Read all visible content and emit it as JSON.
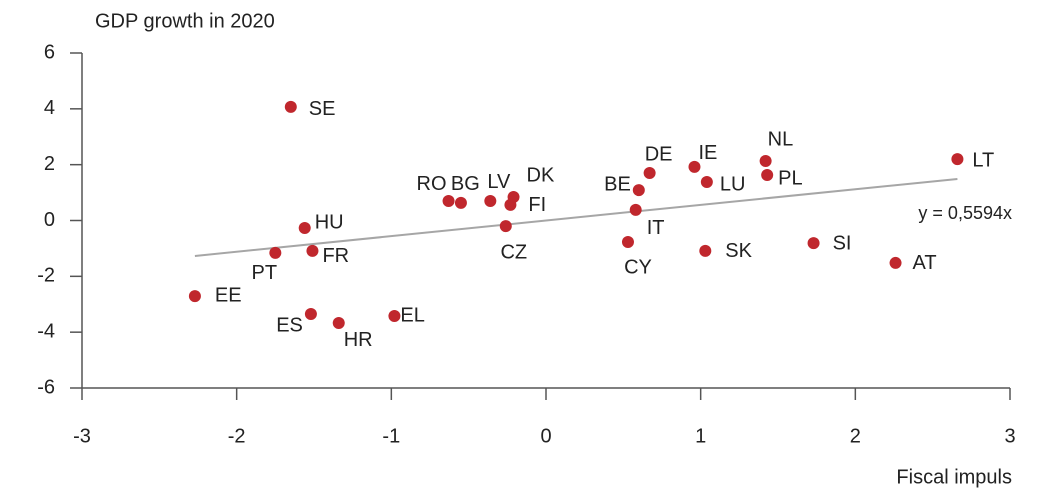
{
  "chart_data": {
    "type": "scatter",
    "title": "GDP growth in 2020",
    "x_label": "Fiscal impuls",
    "color": "#c0272d",
    "xlim": [
      -3,
      3
    ],
    "xticks": [
      -3,
      -2,
      -1,
      0,
      1,
      2,
      3
    ],
    "ylim": [
      -6,
      6
    ],
    "yticks": [
      -6,
      -4,
      -2,
      0,
      2,
      4,
      6
    ],
    "labels": [
      "SE",
      "EE",
      "PT",
      "HU",
      "FR",
      "ES",
      "HR",
      "EL",
      "RO",
      "BG",
      "LV",
      "DK",
      "FI",
      "CZ",
      "BE",
      "DE",
      "IT",
      "CY",
      "IE",
      "LU",
      "SK",
      "NL",
      "PL",
      "SI",
      "AT",
      "LT"
    ],
    "x": [
      -1.65,
      -2.27,
      -1.75,
      -1.56,
      -1.51,
      -1.52,
      -1.34,
      -0.98,
      -0.63,
      -0.55,
      -0.36,
      -0.21,
      -0.23,
      -0.26,
      0.6,
      0.67,
      0.58,
      0.53,
      0.96,
      1.04,
      1.03,
      1.42,
      1.43,
      1.73,
      2.26,
      2.66
    ],
    "y": [
      4.07,
      -2.71,
      -1.16,
      -0.27,
      -1.09,
      -3.35,
      -3.67,
      -3.42,
      0.7,
      0.63,
      0.7,
      0.84,
      0.56,
      -0.2,
      1.09,
      1.7,
      0.38,
      -0.77,
      1.92,
      1.38,
      -1.09,
      2.13,
      1.63,
      -0.81,
      -1.52,
      2.2
    ],
    "trendline": {
      "slope": 0.5594,
      "x": [
        -2.27,
        2.66
      ],
      "label": "y = 0,5594x",
      "color": "#a6a6a6"
    }
  }
}
